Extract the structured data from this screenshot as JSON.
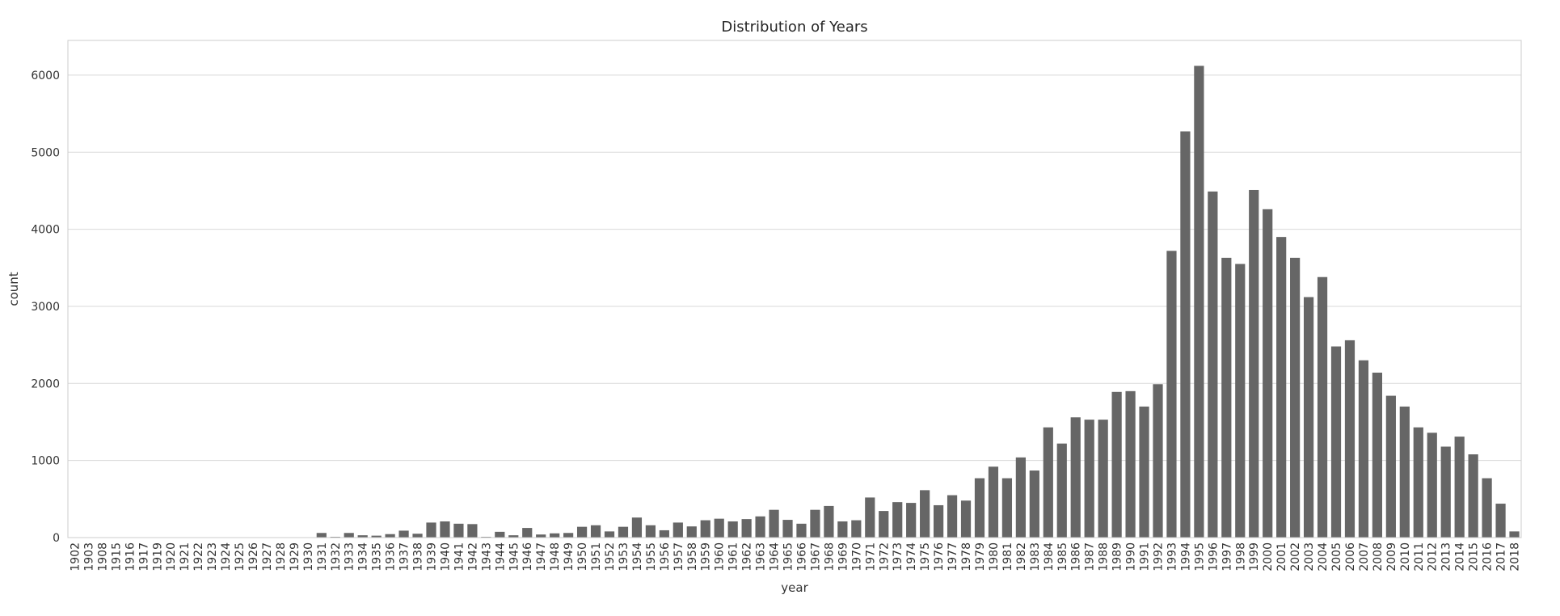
{
  "chart_data": {
    "type": "bar",
    "title": "Distribution of Years",
    "xlabel": "year",
    "ylabel": "count",
    "ylim": [
      0,
      6450
    ],
    "yticks": [
      0,
      1000,
      2000,
      3000,
      4000,
      5000,
      6000
    ],
    "grid": "horizontal",
    "bar_color": "#666666",
    "grid_color": "#d9d9d9",
    "categories": [
      "1902",
      "1903",
      "1908",
      "1915",
      "1916",
      "1917",
      "1919",
      "1920",
      "1921",
      "1922",
      "1923",
      "1924",
      "1925",
      "1926",
      "1927",
      "1928",
      "1929",
      "1930",
      "1931",
      "1932",
      "1933",
      "1934",
      "1935",
      "1936",
      "1937",
      "1938",
      "1939",
      "1940",
      "1941",
      "1942",
      "1943",
      "1944",
      "1945",
      "1946",
      "1947",
      "1948",
      "1949",
      "1950",
      "1951",
      "1952",
      "1953",
      "1954",
      "1955",
      "1956",
      "1957",
      "1958",
      "1959",
      "1960",
      "1961",
      "1962",
      "1963",
      "1964",
      "1965",
      "1966",
      "1967",
      "1968",
      "1969",
      "1970",
      "1971",
      "1972",
      "1973",
      "1974",
      "1975",
      "1976",
      "1977",
      "1978",
      "1979",
      "1980",
      "1981",
      "1982",
      "1983",
      "1984",
      "1985",
      "1986",
      "1987",
      "1988",
      "1989",
      "1990",
      "1991",
      "1992",
      "1993",
      "1994",
      "1995",
      "1996",
      "1997",
      "1998",
      "1999",
      "2000",
      "2001",
      "2002",
      "2003",
      "2004",
      "2005",
      "2006",
      "2007",
      "2008",
      "2009",
      "2010",
      "2011",
      "2012",
      "2013",
      "2014",
      "2015",
      "2016",
      "2017",
      "2018"
    ],
    "values": [
      2,
      1,
      1,
      1,
      1,
      2,
      1,
      2,
      3,
      2,
      1,
      3,
      2,
      2,
      2,
      3,
      3,
      5,
      60,
      10,
      60,
      30,
      25,
      45,
      90,
      50,
      195,
      210,
      180,
      175,
      10,
      75,
      30,
      125,
      40,
      55,
      60,
      140,
      160,
      80,
      140,
      260,
      160,
      95,
      195,
      145,
      225,
      245,
      210,
      240,
      275,
      360,
      230,
      180,
      360,
      410,
      210,
      225,
      520,
      345,
      460,
      450,
      615,
      420,
      550,
      480,
      770,
      920,
      770,
      1040,
      870,
      1430,
      1220,
      1560,
      1530,
      1530,
      1890,
      1900,
      1700,
      1990,
      3720,
      5270,
      6120,
      4490,
      3630,
      3550,
      4510,
      4260,
      3900,
      3630,
      3120,
      3380,
      2480,
      2560,
      2300,
      2140,
      1840,
      1700,
      1430,
      1360,
      1180,
      1310,
      1080,
      770,
      440,
      80
    ]
  }
}
